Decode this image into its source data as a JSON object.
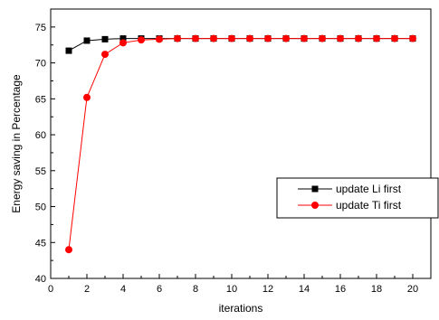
{
  "chart_data": {
    "type": "line",
    "xlabel": "iterations",
    "ylabel": "Energy saving in Percentage",
    "xlim": [
      0,
      21
    ],
    "ylim": [
      40,
      77.5
    ],
    "x_ticks": [
      0,
      2,
      4,
      6,
      8,
      10,
      12,
      14,
      16,
      18,
      20
    ],
    "y_ticks": [
      40,
      45,
      50,
      55,
      60,
      65,
      70,
      75
    ],
    "x_tick_labels": [
      "0",
      "2",
      "4",
      "6",
      "8",
      "10",
      "12",
      "14",
      "16",
      "18",
      "20"
    ],
    "y_tick_labels": [
      "40",
      "45",
      "50",
      "55",
      "60",
      "65",
      "70",
      "75"
    ],
    "grid": false,
    "legend_position": "center-right",
    "series": [
      {
        "name": "update Li first",
        "color": "#000000",
        "marker": "square",
        "x": [
          1,
          2,
          3,
          4,
          5,
          6,
          7,
          8,
          9,
          10,
          11,
          12,
          13,
          14,
          15,
          16,
          17,
          18,
          19,
          20
        ],
        "values": [
          71.7,
          73.1,
          73.3,
          73.4,
          73.4,
          73.4,
          73.4,
          73.4,
          73.4,
          73.4,
          73.4,
          73.4,
          73.4,
          73.4,
          73.4,
          73.4,
          73.4,
          73.4,
          73.4,
          73.4
        ]
      },
      {
        "name": "update Ti first",
        "color": "#ff0000",
        "marker": "circle",
        "x": [
          1,
          2,
          3,
          4,
          5,
          6,
          7,
          8,
          9,
          10,
          11,
          12,
          13,
          14,
          15,
          16,
          17,
          18,
          19,
          20
        ],
        "values": [
          44.0,
          65.2,
          71.2,
          72.8,
          73.2,
          73.3,
          73.4,
          73.4,
          73.4,
          73.4,
          73.4,
          73.4,
          73.4,
          73.4,
          73.4,
          73.4,
          73.4,
          73.4,
          73.4,
          73.4
        ]
      }
    ]
  }
}
